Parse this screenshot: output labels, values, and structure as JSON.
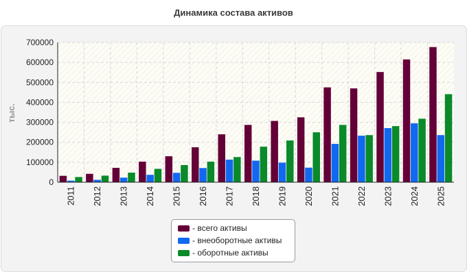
{
  "chart_data": {
    "type": "bar",
    "title": "Динамика состава активов",
    "ylabel": "тыс.",
    "xlabel": "",
    "ylim": [
      0,
      700000
    ],
    "yticks": [
      "0",
      "100000",
      "200000",
      "300000",
      "400000",
      "500000",
      "600000",
      "700000"
    ],
    "grid": true,
    "legend_position": "bottom-center",
    "categories": [
      "2011",
      "2012",
      "2013",
      "2014",
      "2015",
      "2016",
      "2017",
      "2018",
      "2019",
      "2020",
      "2021",
      "2022",
      "2023",
      "2024",
      "2025"
    ],
    "series": [
      {
        "name": "- всего активы",
        "color": "#640038",
        "values": [
          32000,
          42000,
          72000,
          103000,
          130000,
          175000,
          240000,
          287000,
          307000,
          325000,
          475000,
          470000,
          552000,
          615000,
          677000
        ]
      },
      {
        "name": "- внеоборотные активы",
        "color": "#1168f1",
        "values": [
          8000,
          12000,
          23000,
          37000,
          47000,
          71000,
          113000,
          108000,
          98000,
          73000,
          192000,
          233000,
          271000,
          295000,
          236000
        ]
      },
      {
        "name": "- оборотные активы",
        "color": "#0a8a2a",
        "values": [
          26000,
          33000,
          48000,
          67000,
          86000,
          103000,
          126000,
          178000,
          209000,
          250000,
          287000,
          236000,
          281000,
          318000,
          441000
        ]
      }
    ]
  }
}
